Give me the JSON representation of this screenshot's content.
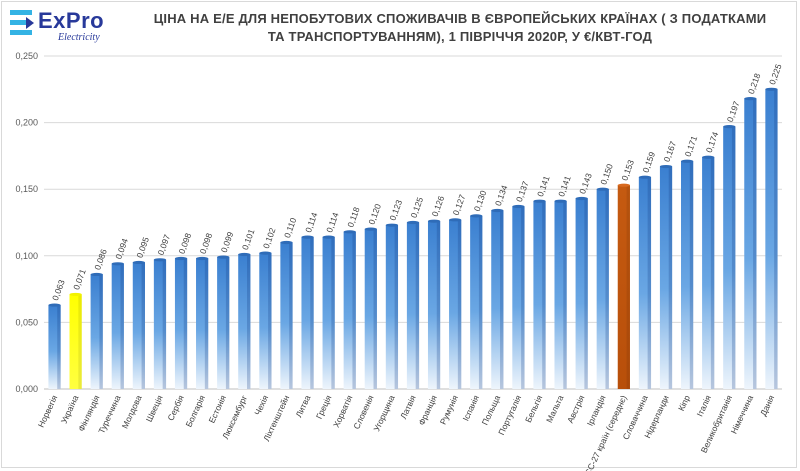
{
  "brand": {
    "name": "ExPro",
    "sub": "Electricity",
    "colors": {
      "primary": "#28399a",
      "accent": "#34b3e4"
    }
  },
  "chart_data": {
    "type": "bar",
    "title": "ЦІНА НА Е/Е ДЛЯ НЕПОБУТОВИХ СПОЖИВАЧІВ В ЄВРОПЕЙСЬКИХ КРАЇНАХ ( З ПОДАТКАМИ ТА ТРАНСПОРТУВАННЯМ), 1 ПІВРІЧЧЯ 2020Р, У €/КВТ-ГОД",
    "categories": [
      "Норвегія",
      "Україна",
      "Фінляндія",
      "Туреччина",
      "Молдова",
      "Швеція",
      "Сербія",
      "Болгарія",
      "Естонія",
      "Люксембург",
      "Чехія",
      "Ліхтенштейн",
      "Литва",
      "Греція",
      "Хорватія",
      "Словенія",
      "Угорщина",
      "Латвія",
      "Франція",
      "Румунія",
      "Іспанія",
      "Польща",
      "Португалія",
      "Бельгія",
      "Мальта",
      "Австрія",
      "Ірландія",
      "ЄС-27 країн (середнє)",
      "Словаччина",
      "Нідерланди",
      "Кіпр",
      "Італія",
      "Великобританія",
      "Німеччина",
      "Данія"
    ],
    "values": [
      0.063,
      0.071,
      0.086,
      0.094,
      0.095,
      0.097,
      0.098,
      0.098,
      0.099,
      0.101,
      0.102,
      0.11,
      0.114,
      0.114,
      0.118,
      0.12,
      0.123,
      0.125,
      0.126,
      0.127,
      0.13,
      0.134,
      0.137,
      0.141,
      0.141,
      0.143,
      0.15,
      0.153,
      0.159,
      0.167,
      0.171,
      0.174,
      0.197,
      0.218,
      0.225
    ],
    "value_labels": [
      "0,063",
      "0,071",
      "0,086",
      "0,094",
      "0,095",
      "0,097",
      "0,098",
      "0,098",
      "0,099",
      "0,101",
      "0,102",
      "0,110",
      "0,114",
      "0,114",
      "0,118",
      "0,120",
      "0,123",
      "0,125",
      "0,126",
      "0,127",
      "0,130",
      "0,134",
      "0,137",
      "0,141",
      "0,141",
      "0,143",
      "0,150",
      "0,153",
      "0,159",
      "0,167",
      "0,171",
      "0,174",
      "0,197",
      "0,218",
      "0,225"
    ],
    "highlight": {
      "Україна": "#ffff00",
      "ЄС-27 країн (середнє)": "#c55a11"
    },
    "bar_color": "#4a90d9",
    "ylim": [
      0,
      0.25
    ],
    "yticks": [
      0,
      0.05,
      0.1,
      0.15,
      0.2,
      0.25
    ],
    "ytick_labels": [
      "0,000",
      "0,050",
      "0,100",
      "0,150",
      "0,200",
      "0,250"
    ],
    "xlabel": "",
    "ylabel": "",
    "grid": true,
    "legend": "none"
  }
}
